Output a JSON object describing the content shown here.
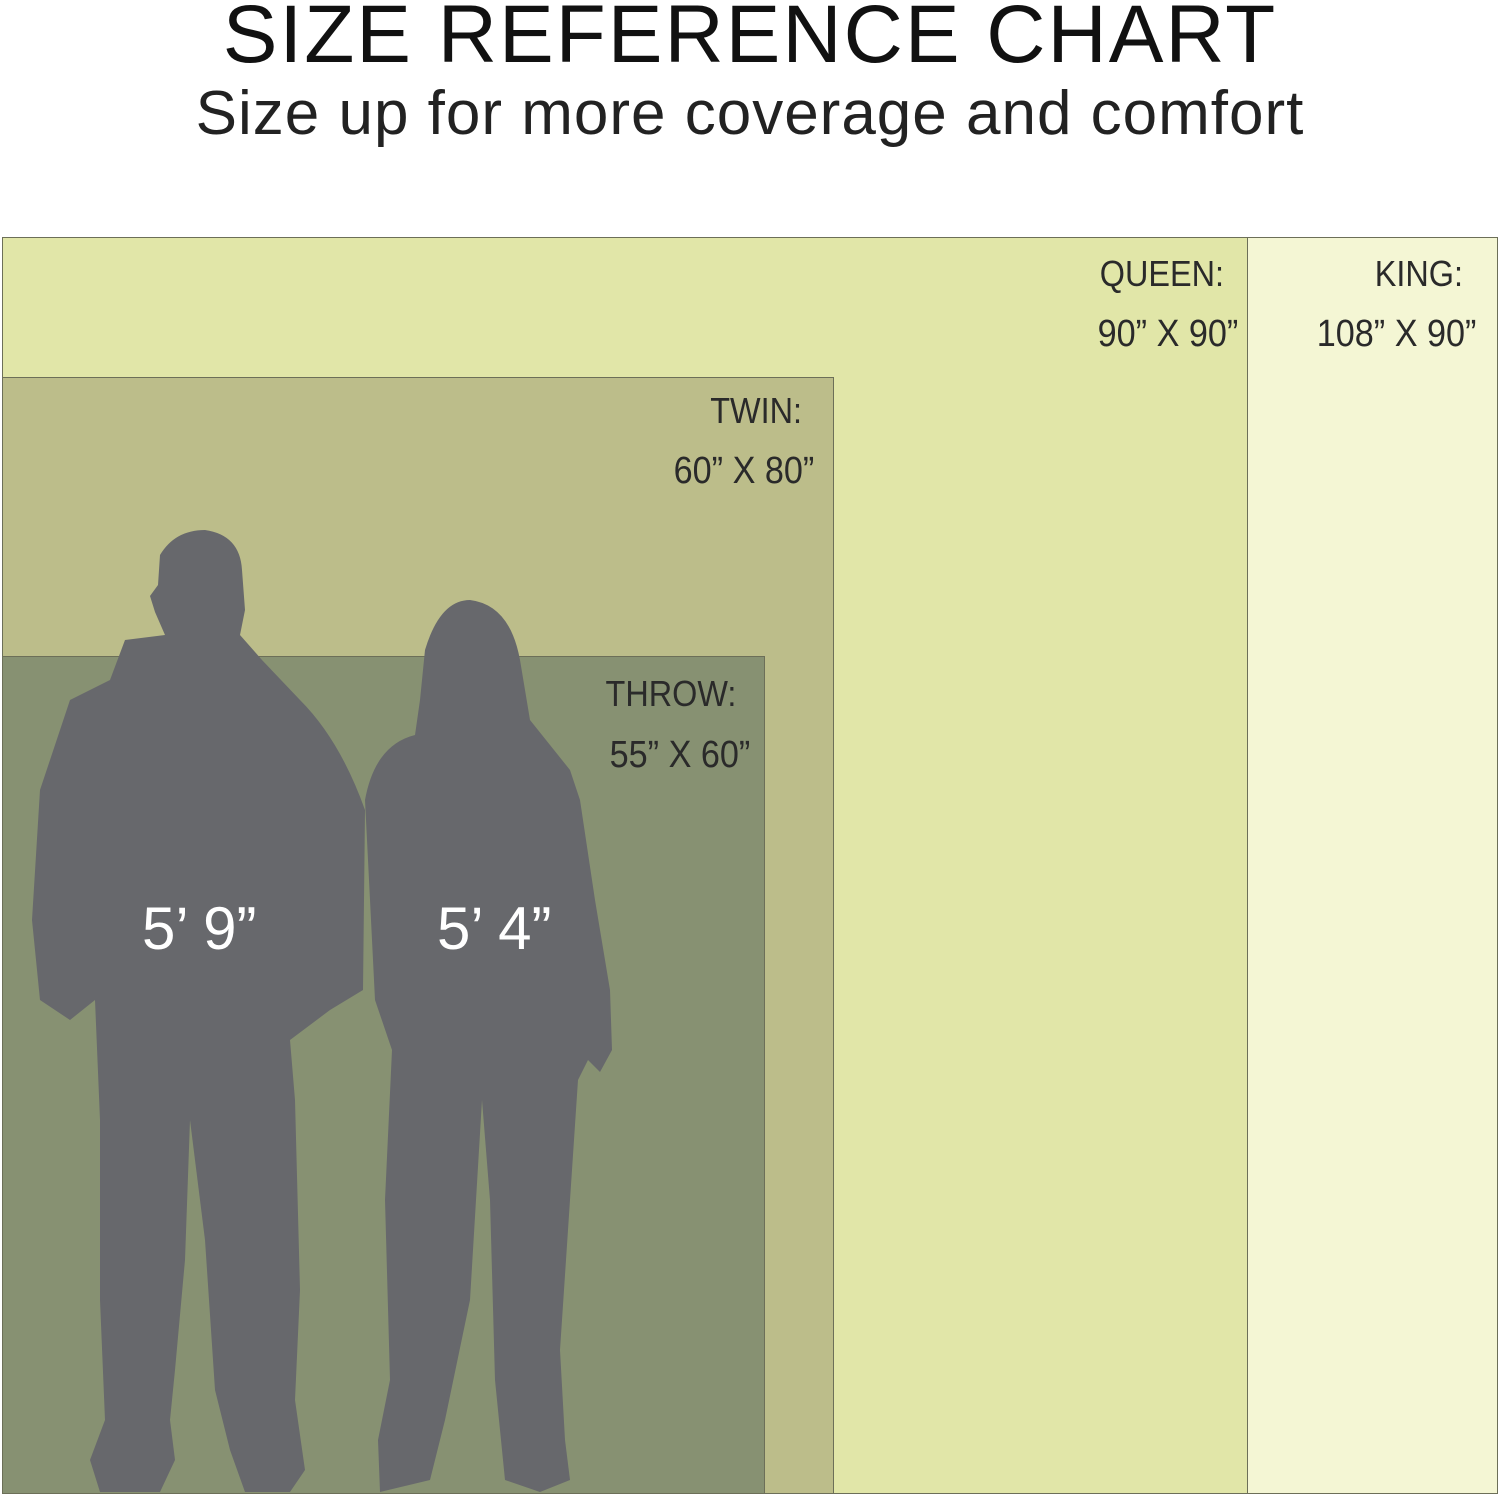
{
  "header": {
    "title": "SIZE REFERENCE CHART",
    "subtitle": "Size up for more coverage and comfort"
  },
  "sizes": [
    {
      "label": "KING:",
      "dimensions": "108” X 90”",
      "color": "#f4f6d4"
    },
    {
      "label": "QUEEN:",
      "dimensions": "90” X 90”",
      "color": "#e1e6a8"
    },
    {
      "label": "TWIN:",
      "dimensions": "60” X 80”",
      "color": "#bcbd8a"
    },
    {
      "label": "THROW:",
      "dimensions": "55” X 60”",
      "color": "#879172"
    }
  ],
  "people": [
    {
      "height": "5’ 9”",
      "icon": "man-silhouette-icon"
    },
    {
      "height": "5’ 4”",
      "icon": "woman-silhouette-icon"
    }
  ],
  "silhouette_color": "#67686c"
}
